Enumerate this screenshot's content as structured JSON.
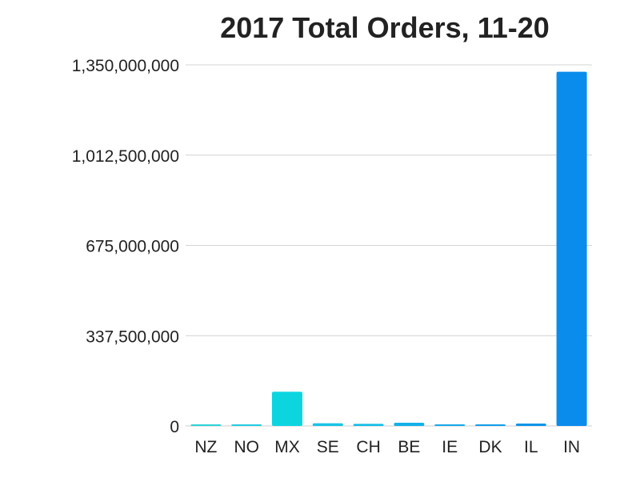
{
  "chart_data": {
    "type": "bar",
    "title": "2017 Total Orders, 11-20",
    "xlabel": "",
    "ylabel": "",
    "categories": [
      "NZ",
      "NO",
      "MX",
      "SE",
      "CH",
      "BE",
      "IE",
      "DK",
      "IL",
      "IN"
    ],
    "values": [
      4000000,
      5000000,
      128000000,
      10000000,
      8000000,
      12000000,
      4000000,
      6000000,
      9000000,
      1324000000
    ],
    "ylim": [
      0,
      1350000000
    ],
    "y_ticks": [
      0,
      337500000,
      675000000,
      1012500000,
      1350000000
    ],
    "y_tick_labels": [
      "0",
      "337,500,000",
      "675,000,000",
      "1,012,500,000",
      "1,350,000,000"
    ],
    "grid": true,
    "colors": {
      "bars": [
        "#2cd3d8",
        "#25cce0",
        "#0dd5e0",
        "#19c3e6",
        "#13bde6",
        "#12b1e8",
        "#15a8e8",
        "#129fe9",
        "#0a93e8",
        "#0a8cec"
      ],
      "grid": "#d4d4d4",
      "axis": "#cccccc",
      "text": "#222222"
    }
  }
}
